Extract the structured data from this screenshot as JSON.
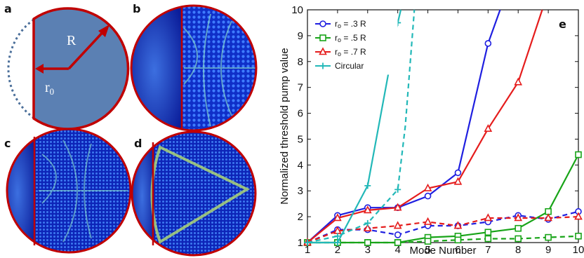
{
  "panels": {
    "a": {
      "label": "a",
      "radius_label": "R",
      "r0_label": "r",
      "r0_sub": "0"
    },
    "b": {
      "label": "b"
    },
    "c": {
      "label": "c"
    },
    "d": {
      "label": "d"
    },
    "e": {
      "label": "e"
    }
  },
  "colors": {
    "disk_fill": "#5b80b3",
    "boundary": "#c00000",
    "dotted_arc": "#4b6f9a",
    "pattern_dark": "#0a1fae",
    "pattern_mid": "#2f69e0",
    "pattern_bright": "#7ee0c0"
  },
  "chart_data": {
    "type": "line",
    "xlabel": "Mode Number",
    "ylabel": "Normalized threshold pump value",
    "xlim": [
      1,
      10
    ],
    "ylim": [
      1,
      10
    ],
    "xticks": [
      "1",
      "2",
      "3",
      "4",
      "5",
      "6",
      "7",
      "8",
      "9",
      "10"
    ],
    "yticks": [
      "1",
      "2",
      "3",
      "4",
      "5",
      "6",
      "7",
      "8",
      "9",
      "10"
    ],
    "panel_label": "e",
    "legend_position": "top-left",
    "legend": [
      {
        "text_main": "r",
        "text_sub": "o",
        "text_rest": " = .3 R",
        "color": "#1f1fe0",
        "marker": "circle"
      },
      {
        "text_main": "r",
        "text_sub": "o",
        "text_rest": " = .5 R",
        "color": "#18a418",
        "marker": "square"
      },
      {
        "text_main": "r",
        "text_sub": "o",
        "text_rest": " = .7 R",
        "color": "#e51c1c",
        "marker": "triangle"
      },
      {
        "text_main": "Circular",
        "text_sub": "",
        "text_rest": "",
        "color": "#22b8b8",
        "marker": "plus"
      }
    ],
    "series": [
      {
        "name": "r0 = .3 R",
        "style": "solid",
        "color": "#1f1fe0",
        "marker": "circle",
        "x": [
          1,
          2,
          3,
          4,
          5,
          6,
          7,
          7.4
        ],
        "y": [
          1,
          2.05,
          2.35,
          2.35,
          2.8,
          3.7,
          8.7,
          10
        ]
      },
      {
        "style": "dashed",
        "color": "#1f1fe0",
        "marker": "circle",
        "x": [
          1,
          2,
          3,
          4,
          5,
          6,
          7,
          8,
          9,
          10
        ],
        "y": [
          1,
          1.5,
          1.5,
          1.3,
          1.65,
          1.65,
          1.8,
          2.05,
          1.9,
          2.2
        ]
      },
      {
        "name": "r0 = .5 R",
        "style": "solid",
        "color": "#18a418",
        "marker": "square",
        "x": [
          1,
          2,
          3,
          4,
          5,
          6,
          7,
          8,
          9,
          10
        ],
        "y": [
          1,
          1,
          1,
          1,
          1.2,
          1.25,
          1.4,
          1.55,
          2.2,
          4.4
        ]
      },
      {
        "style": "dashed",
        "color": "#18a418",
        "marker": "square",
        "x": [
          1,
          2,
          3,
          4,
          5,
          6,
          7,
          8,
          9,
          10
        ],
        "y": [
          1,
          1,
          1,
          1,
          1.05,
          1.1,
          1.15,
          1.15,
          1.2,
          1.25
        ]
      },
      {
        "name": "r0 = .7 R",
        "style": "solid",
        "color": "#e51c1c",
        "marker": "triangle",
        "x": [
          1,
          2,
          3,
          4,
          5,
          6,
          7,
          8,
          8.8
        ],
        "y": [
          1,
          1.95,
          2.25,
          2.35,
          3.1,
          3.35,
          5.4,
          7.2,
          10
        ]
      },
      {
        "style": "dashed",
        "color": "#e51c1c",
        "marker": "triangle",
        "x": [
          1,
          2,
          3,
          4,
          5,
          6,
          7,
          8,
          9,
          10
        ],
        "y": [
          1,
          1.45,
          1.55,
          1.65,
          1.8,
          1.65,
          1.95,
          1.95,
          1.95,
          2.0
        ]
      },
      {
        "name": "Circular",
        "style": "solid",
        "color": "#22b8b8",
        "marker": "plus",
        "x": [
          1,
          2,
          3,
          4,
          4.1
        ],
        "y": [
          1,
          1,
          3.2,
          9.5,
          10
        ]
      },
      {
        "style": "dashed",
        "color": "#22b8b8",
        "marker": "plus",
        "x": [
          1,
          2,
          3,
          4,
          4.25,
          4.55
        ],
        "y": [
          1,
          1.25,
          1.75,
          3.05,
          5.5,
          10
        ]
      }
    ]
  }
}
